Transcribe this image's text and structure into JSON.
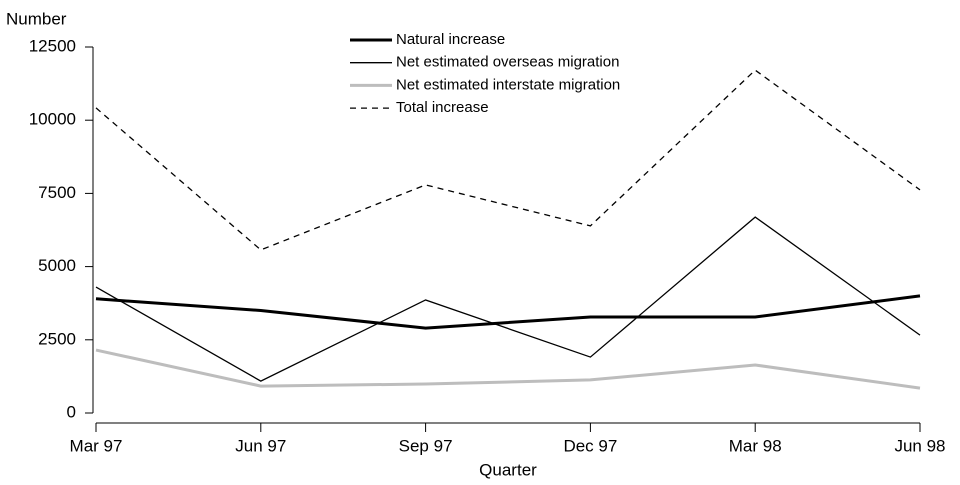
{
  "chart_data": {
    "type": "line",
    "y_label": "Number",
    "x_label": "Quarter",
    "categories": [
      "Mar 97",
      "Jun 97",
      "Sep 97",
      "Dec 97",
      "Mar 98",
      "Jun 98"
    ],
    "ylim": [
      0,
      12500
    ],
    "yticks": [
      0,
      2500,
      5000,
      7500,
      10000,
      12500
    ],
    "grid": false,
    "series": [
      {
        "name": "Natural increase",
        "color": "#000000",
        "line_width": 3,
        "dash": false,
        "values": [
          3900,
          3500,
          2900,
          3280,
          3280,
          4000
        ]
      },
      {
        "name": "Net estimated overseas migration",
        "color": "#000000",
        "line_width": 1.3,
        "dash": false,
        "values": [
          4300,
          1090,
          3860,
          1910,
          6690,
          2660
        ]
      },
      {
        "name": "Net estimated interstate migration",
        "color": "#bdbdbd",
        "line_width": 3,
        "dash": false,
        "values": [
          2150,
          920,
          990,
          1130,
          1640,
          850
        ]
      },
      {
        "name": "Total increase",
        "color": "#000000",
        "line_width": 1.3,
        "dash": true,
        "values": [
          10420,
          5570,
          7790,
          6390,
          11710,
          7620
        ]
      }
    ]
  }
}
